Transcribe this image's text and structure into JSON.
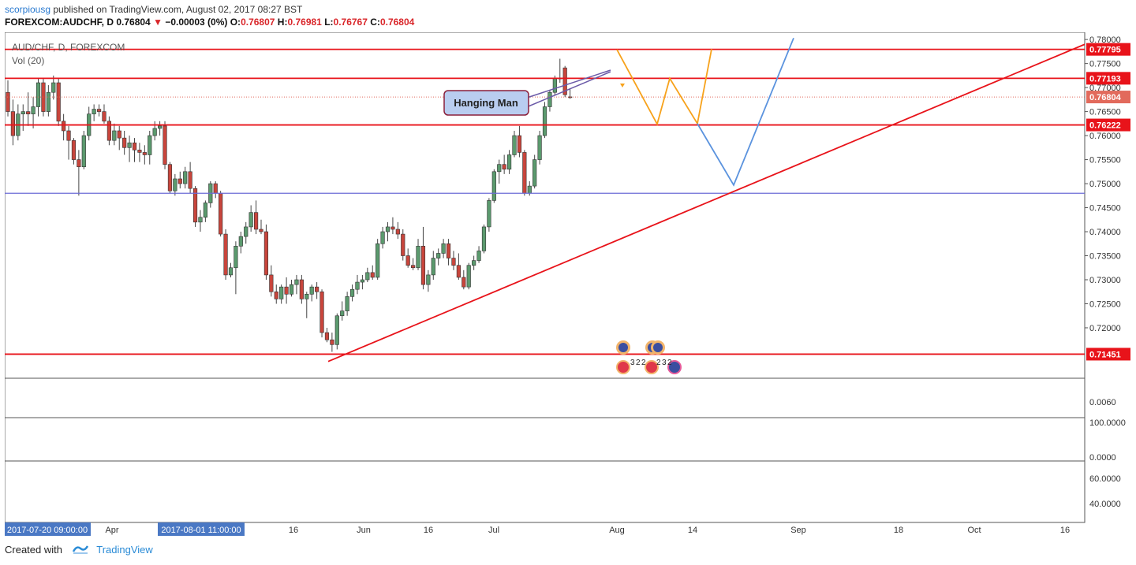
{
  "header": {
    "user": "scorpiousg",
    "published": " published on TradingView.com, August 02, 2017 08:27 BST"
  },
  "symbol": {
    "name": "FOREXCOM:AUDCHF, D",
    "price": "0.76804",
    "arrow": "▼",
    "change": "−0.00003 (0%)",
    "o_label": "O:",
    "o": "0.76807",
    "h_label": "H:",
    "h": "0.76981",
    "l_label": "L:",
    "l": "0.76767",
    "c_label": "C:",
    "c": "0.76804"
  },
  "legend": {
    "main": "AUD/CHF, D, FOREXCOM",
    "vol": "Vol (20)"
  },
  "annotation": {
    "text": "Hanging Man"
  },
  "panes": {
    "p2_label": "0.0060",
    "p3_labels": [
      "100.0000",
      "0.0000"
    ],
    "p4_labels": [
      "60.0000",
      "40.0000"
    ]
  },
  "x_axis": {
    "ticks": [
      "Apr",
      "16",
      "Jun",
      "16",
      "Jul",
      "Aug",
      "14",
      "Sep",
      "18",
      "Oct",
      "16"
    ],
    "highlight_left": "2017-07-20 09:00:00",
    "highlight_mid": "2017-08-01 11:00:00"
  },
  "event_counts": [
    "3",
    "2",
    "2",
    "2",
    "3",
    "2"
  ],
  "footer": {
    "created": "Created with",
    "brand": "TradingView"
  },
  "colors": {
    "up": "#5b9a6e",
    "down": "#c8453c",
    "resistance": "#e8131a",
    "support_blue": "#6b6bd6",
    "orange": "#f7a21b",
    "blue_path": "#5b93de",
    "price_tag": "#e26a5c",
    "label_box": "#b9cdf0"
  },
  "chart_data": {
    "type": "candlestick",
    "title": "AUD/CHF, D, FOREXCOM",
    "ylim": [
      0.7095,
      0.7815
    ],
    "y_ticks": [
      "0.78000",
      "0.77500",
      "0.77000",
      "0.76500",
      "0.76000",
      "0.75500",
      "0.75000",
      "0.74500",
      "0.74000",
      "0.73500",
      "0.73000",
      "0.72500",
      "0.72000"
    ],
    "levels": [
      {
        "label": "0.77795",
        "value": 0.77795,
        "color": "#e8131a"
      },
      {
        "label": "0.77193",
        "value": 0.77193,
        "color": "#e8131a"
      },
      {
        "label": "0.76222",
        "value": 0.76222,
        "color": "#e8131a"
      },
      {
        "label": "0.71451",
        "value": 0.71451,
        "color": "#e8131a"
      },
      {
        "label": "",
        "value": 0.748,
        "color": "#6b6bd6"
      }
    ],
    "last_price": {
      "label": "0.76804",
      "value": 0.76804
    },
    "trendline": [
      [
        0,
        0.713
      ],
      [
        1,
        0.779
      ]
    ],
    "candles": [
      [
        0.769,
        0.7715,
        0.764,
        0.765
      ],
      [
        0.765,
        0.7675,
        0.758,
        0.76
      ],
      [
        0.76,
        0.7665,
        0.759,
        0.7645
      ],
      [
        0.7645,
        0.7665,
        0.761,
        0.765
      ],
      [
        0.765,
        0.769,
        0.762,
        0.7645
      ],
      [
        0.7645,
        0.768,
        0.7615,
        0.766
      ],
      [
        0.766,
        0.772,
        0.764,
        0.771
      ],
      [
        0.771,
        0.772,
        0.764,
        0.765
      ],
      [
        0.765,
        0.7705,
        0.764,
        0.769
      ],
      [
        0.769,
        0.7725,
        0.7675,
        0.771
      ],
      [
        0.771,
        0.772,
        0.762,
        0.763
      ],
      [
        0.763,
        0.7645,
        0.759,
        0.761
      ],
      [
        0.761,
        0.762,
        0.755,
        0.759
      ],
      [
        0.759,
        0.7595,
        0.754,
        0.755
      ],
      [
        0.755,
        0.757,
        0.7475,
        0.7535
      ],
      [
        0.7535,
        0.761,
        0.753,
        0.76
      ],
      [
        0.76,
        0.766,
        0.759,
        0.7645
      ],
      [
        0.7645,
        0.7665,
        0.763,
        0.7655
      ],
      [
        0.7655,
        0.7665,
        0.764,
        0.765
      ],
      [
        0.765,
        0.7665,
        0.7625,
        0.763
      ],
      [
        0.763,
        0.764,
        0.758,
        0.759
      ],
      [
        0.759,
        0.7625,
        0.758,
        0.761
      ],
      [
        0.761,
        0.762,
        0.757,
        0.7595
      ],
      [
        0.7595,
        0.761,
        0.756,
        0.7575
      ],
      [
        0.7575,
        0.76,
        0.7545,
        0.7585
      ],
      [
        0.7585,
        0.7595,
        0.7545,
        0.757
      ],
      [
        0.757,
        0.7585,
        0.7545,
        0.7565
      ],
      [
        0.7565,
        0.758,
        0.754,
        0.756
      ],
      [
        0.756,
        0.761,
        0.754,
        0.76
      ],
      [
        0.76,
        0.763,
        0.759,
        0.7615
      ],
      [
        0.7615,
        0.763,
        0.76,
        0.762
      ],
      [
        0.762,
        0.763,
        0.753,
        0.754
      ],
      [
        0.754,
        0.7545,
        0.748,
        0.7485
      ],
      [
        0.7485,
        0.752,
        0.7475,
        0.751
      ],
      [
        0.751,
        0.7525,
        0.749,
        0.75
      ],
      [
        0.75,
        0.7535,
        0.749,
        0.7525
      ],
      [
        0.7525,
        0.7545,
        0.748,
        0.749
      ],
      [
        0.749,
        0.7495,
        0.741,
        0.742
      ],
      [
        0.742,
        0.7445,
        0.74,
        0.743
      ],
      [
        0.743,
        0.7465,
        0.742,
        0.746
      ],
      [
        0.746,
        0.7505,
        0.745,
        0.75
      ],
      [
        0.75,
        0.7505,
        0.747,
        0.748
      ],
      [
        0.748,
        0.7485,
        0.739,
        0.7395
      ],
      [
        0.7395,
        0.7405,
        0.73,
        0.731
      ],
      [
        0.731,
        0.7335,
        0.7305,
        0.7325
      ],
      [
        0.7325,
        0.738,
        0.727,
        0.737
      ],
      [
        0.737,
        0.74,
        0.7355,
        0.739
      ],
      [
        0.739,
        0.742,
        0.7375,
        0.741
      ],
      [
        0.741,
        0.7455,
        0.74,
        0.744
      ],
      [
        0.744,
        0.7465,
        0.7395,
        0.7405
      ],
      [
        0.7405,
        0.7425,
        0.7395,
        0.74
      ],
      [
        0.74,
        0.7415,
        0.73,
        0.731
      ],
      [
        0.731,
        0.733,
        0.7265,
        0.7275
      ],
      [
        0.7275,
        0.729,
        0.725,
        0.726
      ],
      [
        0.726,
        0.729,
        0.725,
        0.7285
      ],
      [
        0.7285,
        0.7305,
        0.725,
        0.727
      ],
      [
        0.727,
        0.73,
        0.7265,
        0.729
      ],
      [
        0.729,
        0.731,
        0.727,
        0.73
      ],
      [
        0.73,
        0.731,
        0.725,
        0.726
      ],
      [
        0.726,
        0.7275,
        0.722,
        0.727
      ],
      [
        0.727,
        0.729,
        0.7255,
        0.7285
      ],
      [
        0.7285,
        0.7295,
        0.726,
        0.7275
      ],
      [
        0.7275,
        0.728,
        0.718,
        0.719
      ],
      [
        0.719,
        0.72,
        0.717,
        0.7175
      ],
      [
        0.7175,
        0.719,
        0.715,
        0.7165
      ],
      [
        0.7165,
        0.723,
        0.7155,
        0.7225
      ],
      [
        0.7225,
        0.7255,
        0.7215,
        0.7235
      ],
      [
        0.7235,
        0.7275,
        0.7225,
        0.7265
      ],
      [
        0.7265,
        0.729,
        0.7255,
        0.728
      ],
      [
        0.728,
        0.731,
        0.727,
        0.7295
      ],
      [
        0.7295,
        0.731,
        0.728,
        0.73
      ],
      [
        0.73,
        0.7325,
        0.7295,
        0.7315
      ],
      [
        0.7315,
        0.733,
        0.73,
        0.7305
      ],
      [
        0.7305,
        0.7385,
        0.73,
        0.7375
      ],
      [
        0.7375,
        0.741,
        0.7365,
        0.74
      ],
      [
        0.74,
        0.742,
        0.738,
        0.741
      ],
      [
        0.741,
        0.743,
        0.7395,
        0.7405
      ],
      [
        0.7405,
        0.742,
        0.7385,
        0.7395
      ],
      [
        0.7395,
        0.7405,
        0.734,
        0.735
      ],
      [
        0.735,
        0.7365,
        0.7325,
        0.733
      ],
      [
        0.733,
        0.7345,
        0.732,
        0.7325
      ],
      [
        0.7325,
        0.7385,
        0.732,
        0.737
      ],
      [
        0.737,
        0.741,
        0.728,
        0.729
      ],
      [
        0.729,
        0.732,
        0.7275,
        0.731
      ],
      [
        0.731,
        0.736,
        0.73,
        0.7345
      ],
      [
        0.7345,
        0.7365,
        0.733,
        0.7355
      ],
      [
        0.7355,
        0.7385,
        0.7345,
        0.7375
      ],
      [
        0.7375,
        0.7385,
        0.733,
        0.7345
      ],
      [
        0.7345,
        0.736,
        0.732,
        0.733
      ],
      [
        0.733,
        0.7355,
        0.73,
        0.7305
      ],
      [
        0.7305,
        0.732,
        0.728,
        0.7285
      ],
      [
        0.7285,
        0.7335,
        0.728,
        0.733
      ],
      [
        0.733,
        0.735,
        0.732,
        0.734
      ],
      [
        0.734,
        0.737,
        0.7335,
        0.736
      ],
      [
        0.736,
        0.7415,
        0.7355,
        0.741
      ],
      [
        0.741,
        0.747,
        0.74,
        0.7465
      ],
      [
        0.7465,
        0.753,
        0.746,
        0.7525
      ],
      [
        0.7525,
        0.755,
        0.75,
        0.754
      ],
      [
        0.754,
        0.756,
        0.752,
        0.753
      ],
      [
        0.753,
        0.757,
        0.752,
        0.756
      ],
      [
        0.756,
        0.761,
        0.7555,
        0.76
      ],
      [
        0.76,
        0.762,
        0.7555,
        0.7565
      ],
      [
        0.7565,
        0.757,
        0.7475,
        0.748
      ],
      [
        0.748,
        0.7505,
        0.7475,
        0.7495
      ],
      [
        0.7495,
        0.756,
        0.749,
        0.755
      ],
      [
        0.755,
        0.761,
        0.754,
        0.76
      ],
      [
        0.76,
        0.767,
        0.7595,
        0.766
      ],
      [
        0.766,
        0.7695,
        0.765,
        0.769
      ],
      [
        0.769,
        0.7725,
        0.7685,
        0.772
      ],
      [
        0.772,
        0.776,
        0.771,
        0.7718
      ],
      [
        0.7741,
        0.7745,
        0.768,
        0.7685
      ],
      [
        0.76807,
        0.76981,
        0.76767,
        0.76804
      ]
    ]
  }
}
